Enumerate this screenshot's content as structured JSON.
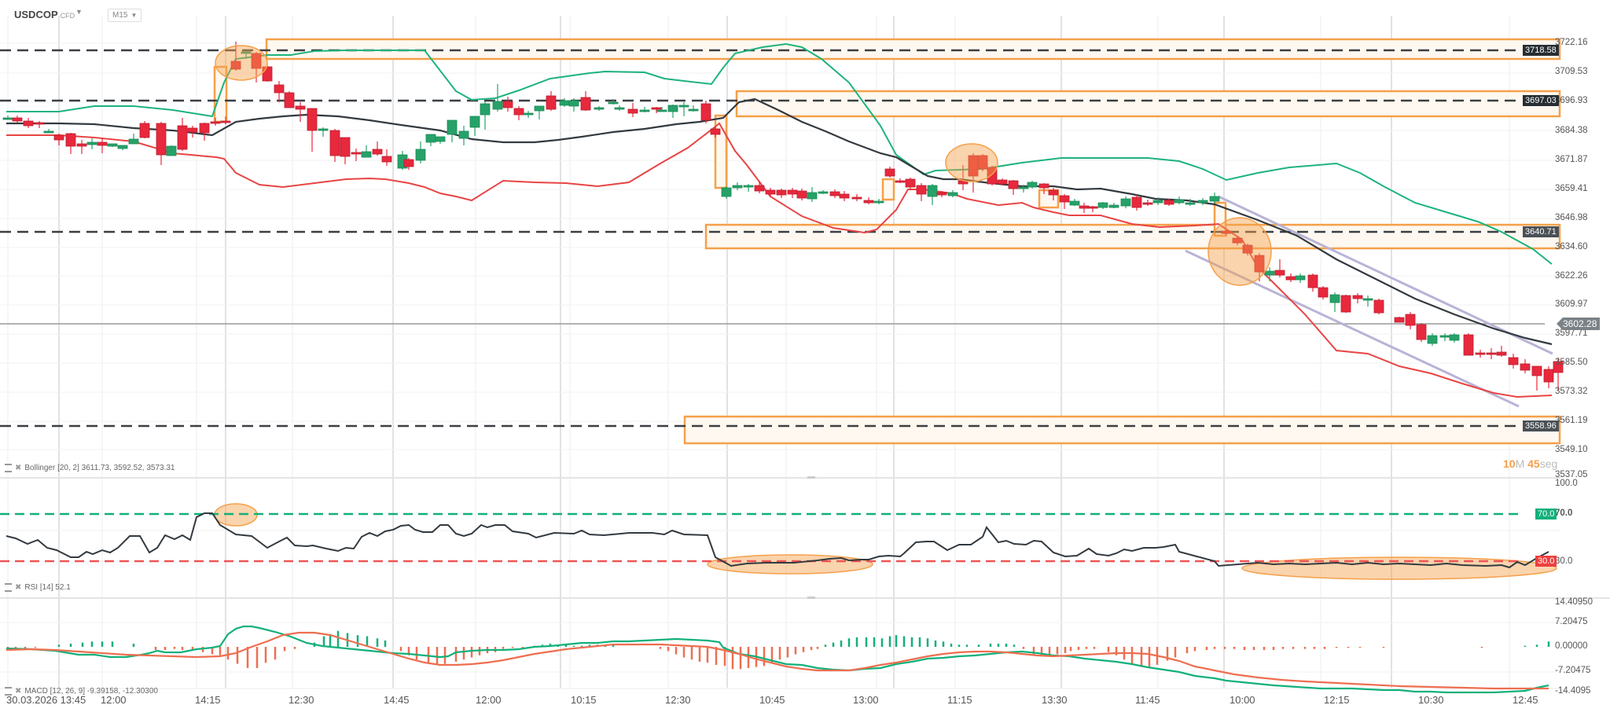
{
  "header": {
    "symbol": "USDCOP",
    "symbol_type": "CFD",
    "timeframe": "M15"
  },
  "price_axis": {
    "labels": [
      "3722.16",
      "3709.53",
      "3696.93",
      "3684.38",
      "3671.87",
      "3659.41",
      "3646.98",
      "3634.60",
      "3622.26",
      "3609.97",
      "3597.71",
      "3585.50",
      "3573.32",
      "3561.19",
      "3549.10",
      "3537.05"
    ],
    "current_price": "3602.28",
    "level_tags": [
      "3718.58",
      "3697.03",
      "3640.71",
      "3558.96"
    ]
  },
  "countdown": {
    "minutes": "10",
    "m_unit": "M",
    "seconds": "45",
    "s_unit": "seg"
  },
  "indicators": {
    "bollinger": "Bollinger [20, 2] 3611.73, 3592.52, 3573.31",
    "rsi": "RSI [14] 52.1",
    "macd": "MACD [12, 26, 9] -9.39158, -12.30300"
  },
  "rsi_axis": {
    "top": "100.0",
    "upper": "70.0",
    "lower": "30.0",
    "upper_tag": "70.0",
    "lower_tag": "30.0"
  },
  "macd_axis": {
    "labels": [
      "14.40950",
      "7.20475",
      "0.00000",
      "-7.20475",
      "-14.4095"
    ]
  },
  "time_axis": [
    "30.03.2026 13:45",
    "12:00",
    "14:15",
    "12:30",
    "14:45",
    "12:00",
    "10:15",
    "12:30",
    "10:45",
    "13:00",
    "11:15",
    "13:30",
    "11:45",
    "10:00",
    "12:15",
    "10:30",
    "12:45"
  ],
  "colors": {
    "bull": "#26a269",
    "bear": "#e8283c",
    "bb_upper": "#1db37e",
    "bb_mid": "#333a40",
    "bb_lower": "#e84444",
    "zone": "#f5a04a",
    "rsi_upper": "#12b07a",
    "rsi_lower": "#ee5555",
    "macd_line": "#12b07a",
    "signal_line": "#ee6e50",
    "channel": "#b9b3d6",
    "tag_dark": "#262e33"
  },
  "chart_data": {
    "type": "candlestick",
    "title": "USDCOP CFD M15",
    "ylim": [
      3537.05,
      3722.16
    ],
    "horizontal_levels": [
      3718.58,
      3697.03,
      3640.71,
      3558.96
    ],
    "current_price": 3602.28,
    "bollinger_last": {
      "upper": 3611.73,
      "middle": 3592.52,
      "lower": 3573.31
    },
    "rsi": {
      "period": 14,
      "last": 52.1,
      "levels": [
        70,
        30
      ]
    },
    "macd": {
      "params": [
        12,
        26,
        9
      ],
      "macd": -9.39158,
      "signal": -12.303,
      "ylim": [
        -14.4095,
        14.4095
      ]
    }
  }
}
